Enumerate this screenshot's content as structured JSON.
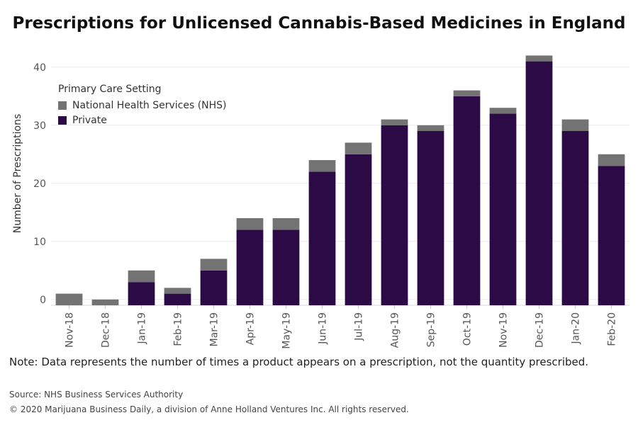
{
  "title": "Prescriptions for Unlicensed Cannabis-Based Medicines in England",
  "note": "Note: Data represents the number of times a product appears on a prescription, not the quantity prescribed.",
  "source": "Source: NHS Business Services Authority",
  "copyright": "© 2020 Marijuana Business Daily, a division of Anne Holland Ventures Inc. All rights reserved.",
  "legend": {
    "title": "Primary Care Setting",
    "items": [
      {
        "label": "National Health Services (NHS)",
        "color": "#737373"
      },
      {
        "label": "Private",
        "color": "#2b0a45"
      }
    ]
  },
  "chart_data": {
    "type": "bar",
    "stacked": true,
    "title": "Prescriptions for Unlicensed Cannabis-Based Medicines in England",
    "xlabel": "",
    "ylabel": "Number of Prescriptions",
    "ylim": [
      -1,
      44
    ],
    "yticks": [
      0,
      10,
      20,
      30,
      40
    ],
    "grid": true,
    "legend_position": "top-left",
    "categories": [
      "Nov-18",
      "Dec-18",
      "Jan-19",
      "Feb-19",
      "Mar-19",
      "Apr-19",
      "May-19",
      "Jun-19",
      "Jul-19",
      "Aug-19",
      "Sep-19",
      "Oct-19",
      "Nov-19",
      "Dec-19",
      "Jan-20",
      "Feb-20"
    ],
    "series": [
      {
        "name": "Private",
        "color": "#2b0a45",
        "values": [
          0,
          0,
          4,
          2,
          6,
          13,
          13,
          23,
          26,
          31,
          30,
          36,
          33,
          42,
          30,
          24
        ]
      },
      {
        "name": "National Health Services (NHS)",
        "color": "#737373",
        "values": [
          2,
          1,
          2,
          1,
          2,
          2,
          2,
          2,
          2,
          1,
          1,
          1,
          1,
          1,
          2,
          2
        ]
      }
    ]
  }
}
